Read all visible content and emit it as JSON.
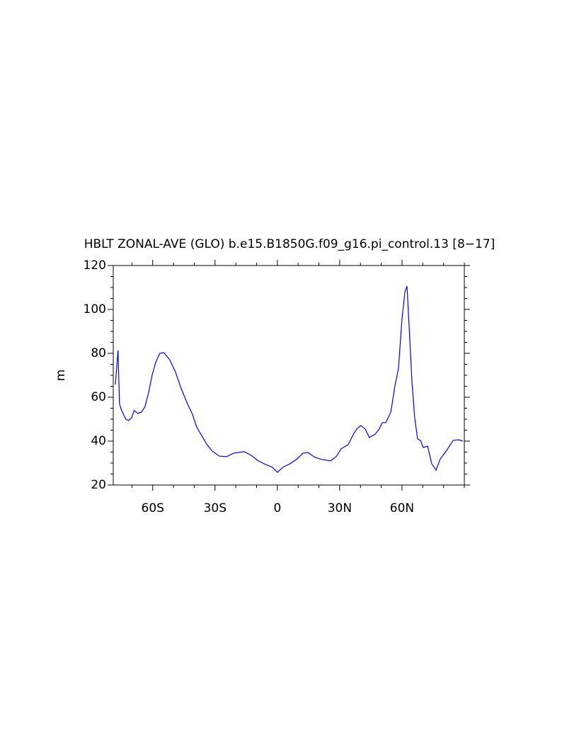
{
  "chart_data": {
    "type": "line",
    "title": "HBLT ZONAL-AVE (GLO) b.e15.B1850G.f09_g16.pi_control.13 [8−17]",
    "y_label": "m",
    "xlim": [
      -79,
      90
    ],
    "ylim": [
      20,
      120
    ],
    "xticks": [
      {
        "value": -60,
        "label": "60S"
      },
      {
        "value": -30,
        "label": "30S"
      },
      0,
      {
        "value": 30,
        "label": "30N"
      },
      {
        "value": 60,
        "label": "60N"
      }
    ],
    "yticks": [
      20,
      40,
      60,
      80,
      100,
      120
    ],
    "xminorticks": [
      -70,
      -50,
      -40,
      -20,
      -10,
      10,
      20,
      40,
      50,
      70,
      80,
      90
    ],
    "yminorticks": [
      25,
      30,
      35,
      45,
      50,
      55,
      65,
      70,
      75,
      85,
      90,
      95,
      105,
      110,
      115
    ],
    "series": [
      {
        "color": "#0000ff",
        "x": [
          -78,
          -76.7,
          -76,
          -75,
          -73,
          -71.6,
          -70.2,
          -68.9,
          -67.2,
          -65.5,
          -63.8,
          -62,
          -60.3,
          -58.6,
          -56.6,
          -54.6,
          -51.8,
          -49.1,
          -46.4,
          -43.3,
          -40.9,
          -38.9,
          -36.5,
          -34.1,
          -31.4,
          -28,
          -24.5,
          -21.1,
          -16,
          -12.6,
          -9.2,
          -5.8,
          -2.4,
          0,
          2.7,
          6.1,
          9.5,
          12.3,
          14.7,
          18.1,
          21.5,
          25.6,
          28.3,
          30.7,
          34.1,
          36.8,
          38.5,
          40.2,
          42.3,
          44.3,
          47.1,
          48.8,
          50.5,
          52.2,
          54.6,
          56.6,
          58.3,
          60,
          61.4,
          62.4,
          63.4,
          64.8,
          66.1,
          67.5,
          68.9,
          70.2,
          72.3,
          74.3,
          76.4,
          78.4,
          81.1,
          84.6,
          87.3,
          89.3
        ],
        "values": [
          65.8,
          81.3,
          57,
          54,
          50,
          49.4,
          50.6,
          54,
          52.6,
          53.2,
          55.5,
          62,
          70,
          75.8,
          80,
          80.3,
          77,
          71.6,
          64.2,
          57,
          52.3,
          46.5,
          42.6,
          38.7,
          35.5,
          33.2,
          32.9,
          34.5,
          35.2,
          33.5,
          31,
          29.4,
          28.1,
          25.8,
          28.1,
          29.7,
          31.9,
          34.5,
          34.8,
          32.6,
          31.6,
          31,
          32.9,
          36.5,
          38.4,
          43.5,
          45.8,
          47.1,
          45.5,
          41.6,
          43.2,
          45.2,
          48.4,
          48.4,
          53.2,
          65.2,
          73.2,
          95.8,
          108,
          110.6,
          92.6,
          66.8,
          50.6,
          41,
          40.3,
          37.1,
          37.7,
          29.7,
          26.8,
          31.9,
          35.2,
          40.3,
          40.6,
          40
        ]
      }
    ]
  }
}
